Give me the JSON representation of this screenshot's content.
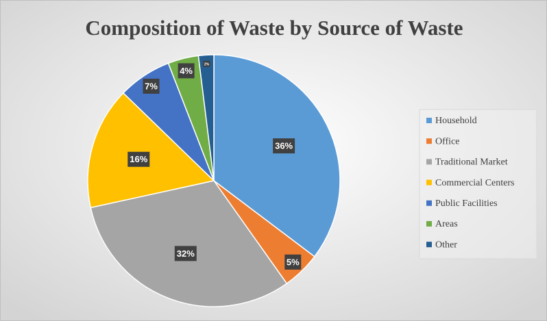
{
  "chart_data": {
    "type": "pie",
    "title": "Composition of Waste by Source of Waste",
    "categories": [
      "Household",
      "Office",
      "Traditional Market",
      "Commercial Centers",
      "Public Facilities",
      "Areas",
      "Other"
    ],
    "values": [
      36,
      5,
      32,
      16,
      7,
      4,
      2
    ],
    "value_labels": [
      "36%",
      "5%",
      "32%",
      "16%",
      "7%",
      "4%",
      "2%"
    ],
    "colors": [
      "#5b9bd5",
      "#ed7d31",
      "#a5a5a5",
      "#ffc000",
      "#4472c4",
      "#70ad47",
      "#255e91"
    ],
    "legend": "right"
  }
}
